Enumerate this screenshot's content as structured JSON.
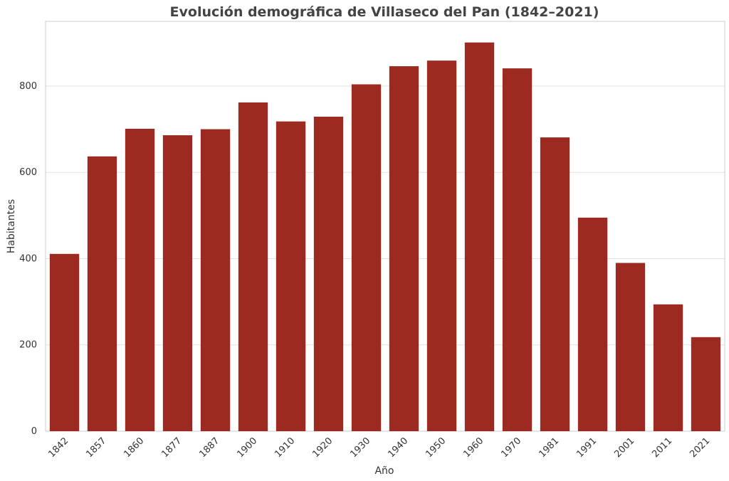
{
  "chart_data": {
    "type": "bar",
    "title": "Evolución demográfica de Villaseco del Pan (1842–2021)",
    "xlabel": "Año",
    "ylabel": "Habitantes",
    "categories": [
      "1842",
      "1857",
      "1860",
      "1877",
      "1887",
      "1900",
      "1910",
      "1920",
      "1930",
      "1940",
      "1950",
      "1960",
      "1970",
      "1981",
      "1991",
      "2001",
      "2011",
      "2021"
    ],
    "values": [
      411,
      637,
      701,
      686,
      700,
      762,
      718,
      729,
      804,
      846,
      859,
      901,
      841,
      681,
      495,
      390,
      294,
      218
    ],
    "ylim": [
      0,
      950
    ],
    "yticks": [
      0,
      200,
      400,
      600,
      800
    ],
    "grid": true,
    "bar_color": "#9c2a20"
  }
}
